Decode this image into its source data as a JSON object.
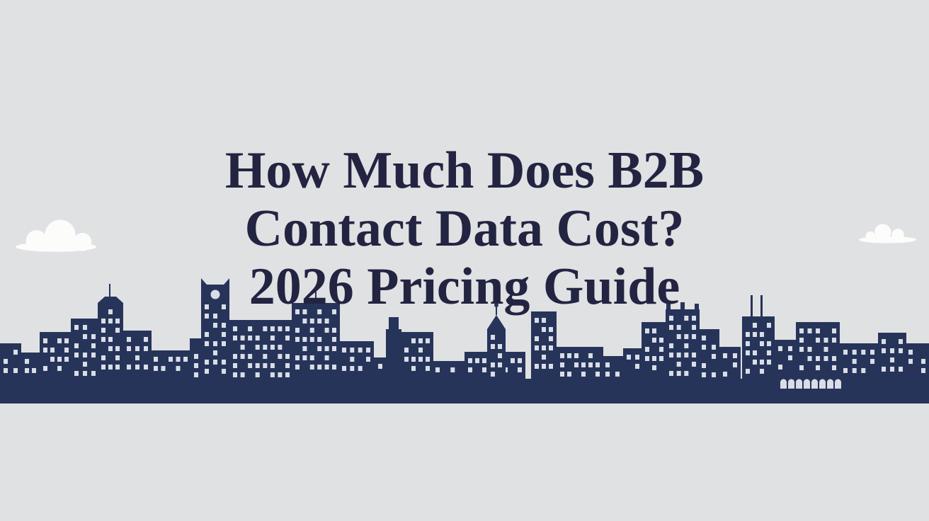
{
  "banner": {
    "title_line1": "How Much Does B2B",
    "title_line2": "Contact Data Cost?",
    "title_line3": "2026 Pricing Guide"
  },
  "colors": {
    "background": "#e0e1e3",
    "skyline_navy": "#27345a",
    "title_navy": "#232441",
    "cloud_white": "#fcfcfb",
    "window_light": "#d9dde6"
  },
  "illustration": {
    "left_cloud": "cloud",
    "right_cloud": "cloud",
    "skyline": "city-skyline-silhouette"
  }
}
